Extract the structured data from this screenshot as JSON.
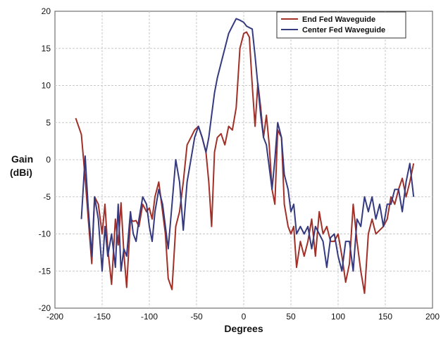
{
  "chart_data": {
    "type": "line",
    "xlabel": "Degrees",
    "ylabel_line1": "Gain",
    "ylabel_line2": "(dBi)",
    "xlim": [
      -200,
      200
    ],
    "ylim": [
      -20,
      20
    ],
    "xticks": [
      -200,
      -150,
      -100,
      -50,
      0,
      50,
      100,
      150,
      200
    ],
    "yticks": [
      -20,
      -15,
      -10,
      -5,
      0,
      5,
      10,
      15,
      20
    ],
    "grid": true,
    "legend_position": "top-right",
    "series": [
      {
        "name": "End Fed Waveguide",
        "color": "#a03028",
        "x": [
          -178,
          -172,
          -168,
          -165,
          -161,
          -158,
          -154,
          -150,
          -147,
          -144,
          -140,
          -136,
          -133,
          -130,
          -127,
          -124,
          -120,
          -117,
          -114,
          -111,
          -107,
          -103,
          -100,
          -97,
          -94,
          -90,
          -86,
          -83,
          -80,
          -76,
          -72,
          -68,
          -64,
          -60,
          -56,
          -52,
          -48,
          -44,
          -40,
          -37,
          -34,
          -31,
          -28,
          -24,
          -20,
          -16,
          -12,
          -8,
          -4,
          0,
          3,
          6,
          9,
          12,
          15,
          18,
          21,
          24,
          27,
          30,
          33,
          36,
          40,
          43,
          47,
          50,
          53,
          56,
          60,
          64,
          68,
          72,
          76,
          80,
          84,
          88,
          92,
          96,
          100,
          104,
          108,
          112,
          116,
          120,
          124,
          128,
          132,
          136,
          140,
          144,
          148,
          152,
          156,
          160,
          164,
          168,
          172,
          176,
          180
        ],
        "y": [
          5.6,
          3.4,
          -2.5,
          -7.5,
          -14,
          -5,
          -6,
          -10,
          -6,
          -12,
          -16.8,
          -8,
          -11.5,
          -5.8,
          -12.5,
          -17.2,
          -8,
          -8.3,
          -8.2,
          -9,
          -6,
          -7,
          -6.5,
          -8,
          -5,
          -3,
          -7,
          -10,
          -16,
          -17.5,
          -9,
          -7,
          -3,
          2,
          3,
          4,
          4.5,
          3,
          1,
          -3,
          -9,
          1,
          3,
          3.5,
          2,
          4.5,
          4,
          7,
          15,
          17,
          17.2,
          16.5,
          10,
          4.5,
          10.3,
          7,
          3,
          6,
          2,
          -4,
          -6,
          4,
          3,
          -6,
          -9,
          -10,
          -9,
          -14.5,
          -11,
          -13,
          -11,
          -8,
          -13,
          -7,
          -10,
          -9,
          -11,
          -11,
          -10,
          -13,
          -16.5,
          -14,
          -6,
          -11,
          -15,
          -18,
          -10,
          -8,
          -10,
          -9.5,
          -9,
          -8,
          -5,
          -6,
          -4,
          -2.5,
          -5,
          -3,
          -0.5
        ]
      },
      {
        "name": "Center Fed Waveguide",
        "color": "#353a80",
        "x": [
          -172,
          -168,
          -165,
          -161,
          -158,
          -154,
          -150,
          -147,
          -144,
          -140,
          -136,
          -133,
          -130,
          -127,
          -124,
          -120,
          -117,
          -114,
          -111,
          -107,
          -103,
          -100,
          -97,
          -94,
          -90,
          -86,
          -83,
          -80,
          -76,
          -72,
          -68,
          -64,
          -60,
          -56,
          -52,
          -48,
          -44,
          -40,
          -37,
          -34,
          -31,
          -28,
          -24,
          -20,
          -16,
          -12,
          -8,
          -4,
          0,
          3,
          6,
          9,
          12,
          15,
          18,
          21,
          24,
          27,
          30,
          33,
          36,
          40,
          43,
          47,
          50,
          53,
          56,
          60,
          64,
          68,
          72,
          76,
          80,
          84,
          88,
          92,
          96,
          100,
          104,
          108,
          112,
          116,
          120,
          124,
          128,
          132,
          136,
          140,
          144,
          148,
          152,
          156,
          160,
          164,
          168,
          172,
          176,
          180
        ],
        "y": [
          -8,
          0.5,
          -6,
          -13,
          -5,
          -8,
          -15,
          -9,
          -13,
          -10,
          -14.5,
          -6,
          -15,
          -12,
          -13,
          -7,
          -10,
          -11,
          -8,
          -5,
          -6,
          -9,
          -11,
          -7,
          -4,
          -6,
          -9,
          -12,
          -6,
          0,
          -3,
          -9.5,
          -3,
          0,
          3,
          4.5,
          3,
          1,
          3,
          6,
          9,
          11,
          13,
          15,
          17,
          18,
          19,
          18.8,
          18.5,
          18,
          17.8,
          17.6,
          14,
          10,
          6,
          3,
          2,
          -1,
          -4,
          0,
          5,
          3,
          -2,
          -4,
          -7,
          -6,
          -10,
          -9,
          -10,
          -9,
          -12,
          -9,
          -10,
          -11,
          -14.5,
          -10.5,
          -10,
          -13,
          -15,
          -11,
          -11,
          -15,
          -8,
          -9,
          -5,
          -7,
          -5,
          -8,
          -6,
          -9,
          -6,
          -6,
          -4,
          -4,
          -7,
          -3,
          -0.5,
          -5
        ]
      }
    ]
  }
}
